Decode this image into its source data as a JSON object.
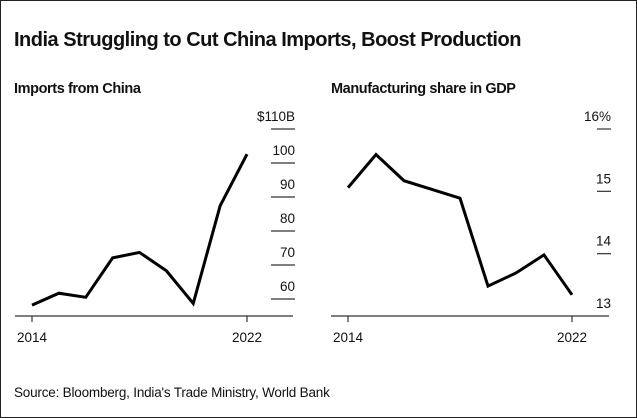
{
  "title": "India Struggling to Cut China Imports, Boost Production",
  "source": "Source: Bloomberg, India's Trade Ministry, World Bank",
  "colors": {
    "line": "#000000",
    "text": "#111111",
    "axis": "#333333",
    "background": "#ffffff"
  },
  "chart_data": [
    {
      "type": "line",
      "title": "Imports from China",
      "x": [
        2014,
        2015,
        2016,
        2017,
        2018,
        2019,
        2020,
        2021,
        2022
      ],
      "values": [
        58.2,
        61.7,
        60.5,
        72.1,
        73.7,
        68.3,
        58.7,
        87.4,
        102.6
      ],
      "xticks": [
        "2014",
        "2022"
      ],
      "yticks": [
        {
          "value": 110,
          "label": "$110B"
        },
        {
          "value": 100,
          "label": "100"
        },
        {
          "value": 90,
          "label": "90"
        },
        {
          "value": 80,
          "label": "80"
        },
        {
          "value": 70,
          "label": "70"
        },
        {
          "value": 60,
          "label": "60"
        }
      ],
      "ylim": [
        55,
        110
      ],
      "y_axis_side": "right",
      "grid": false
    },
    {
      "type": "line",
      "title": "Manufacturing share in GDP",
      "x": [
        2014,
        2015,
        2016,
        2017,
        2018,
        2019,
        2020,
        2021,
        2022
      ],
      "values": [
        15.06,
        15.59,
        15.17,
        15.03,
        14.89,
        13.48,
        13.69,
        13.98,
        13.34
      ],
      "xticks": [
        "2014",
        "2022"
      ],
      "yticks": [
        {
          "value": 16,
          "label": "16%"
        },
        {
          "value": 15,
          "label": "15"
        },
        {
          "value": 14,
          "label": "14"
        },
        {
          "value": 13,
          "label": "13"
        }
      ],
      "ylim": [
        13,
        16
      ],
      "y_axis_side": "right",
      "grid": false
    }
  ]
}
